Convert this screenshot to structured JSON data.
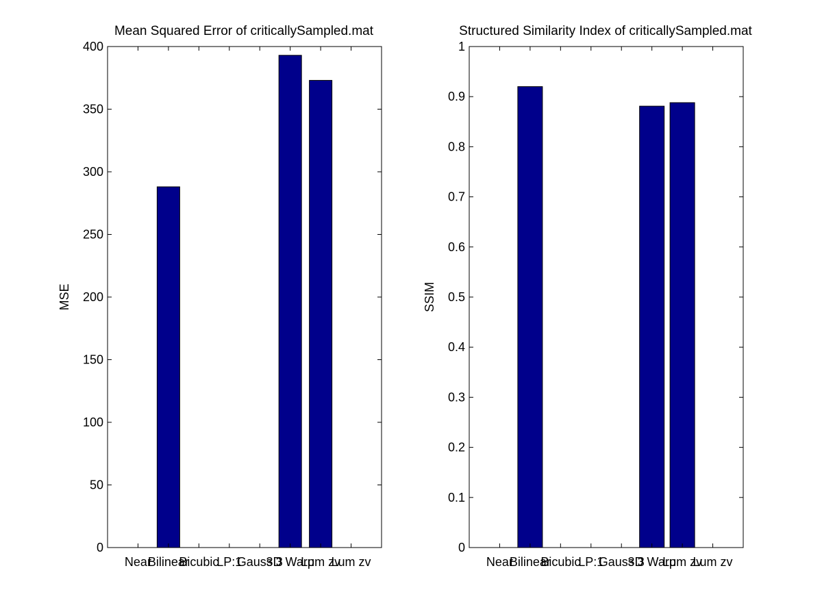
{
  "chart_data": [
    {
      "type": "bar",
      "title": "Mean Squared Error of criticallySampled.mat",
      "xlabel": "",
      "ylabel": "MSE",
      "categories": [
        "Near",
        "Bilinear",
        "Bicubic",
        "LP:1",
        "Gauss 3",
        "3D Warp",
        "Lum zv",
        "Lum zv"
      ],
      "values": [
        0,
        288,
        0,
        0,
        0,
        393,
        373,
        0
      ],
      "ylim": [
        0,
        400
      ],
      "yticks": [
        "0",
        "50",
        "100",
        "150",
        "200",
        "250",
        "300",
        "350",
        "400"
      ],
      "grid": false,
      "bar_color": "#00008B"
    },
    {
      "type": "bar",
      "title": "Structured Similarity Index of criticallySampled.mat",
      "xlabel": "",
      "ylabel": "SSIM",
      "categories": [
        "Near",
        "Bilinear",
        "Bicubic",
        "LP:1",
        "Gauss 3",
        "3D Warp",
        "Lum zv",
        "Lum zv"
      ],
      "values": [
        0,
        0.92,
        0,
        0,
        0,
        0.881,
        0.888,
        0
      ],
      "ylim": [
        0,
        1
      ],
      "yticks": [
        "0",
        "0.1",
        "0.2",
        "0.3",
        "0.4",
        "0.5",
        "0.6",
        "0.7",
        "0.8",
        "0.9",
        "1"
      ],
      "grid": false,
      "bar_color": "#00008B"
    }
  ]
}
